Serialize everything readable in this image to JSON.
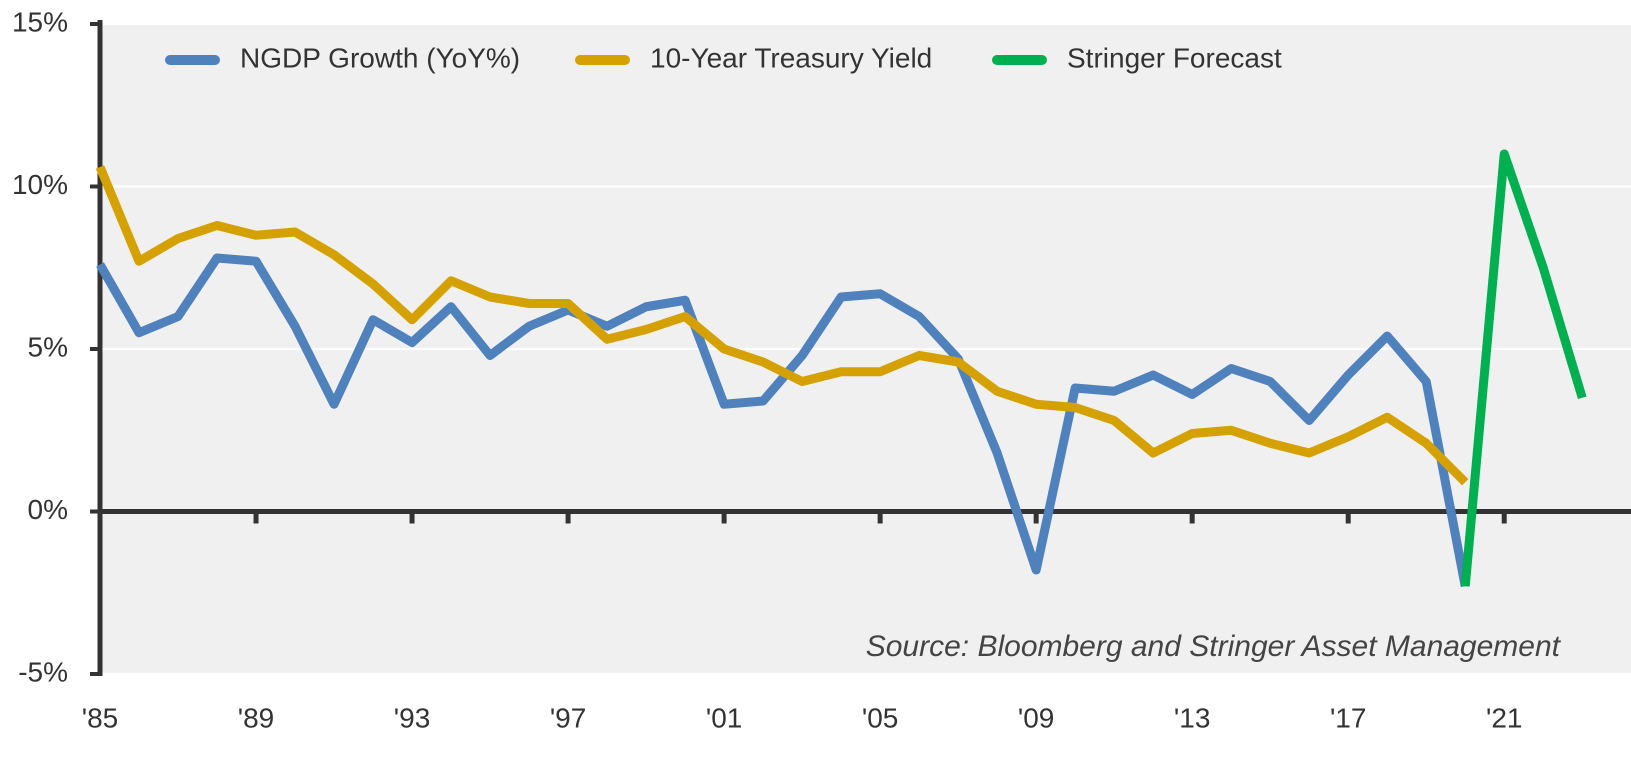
{
  "chart_data": {
    "type": "line",
    "x": [
      1985,
      1986,
      1987,
      1988,
      1989,
      1990,
      1991,
      1992,
      1993,
      1994,
      1995,
      1996,
      1997,
      1998,
      1999,
      2000,
      2001,
      2002,
      2003,
      2004,
      2005,
      2006,
      2007,
      2008,
      2009,
      2010,
      2011,
      2012,
      2013,
      2014,
      2015,
      2016,
      2017,
      2018,
      2019,
      2020,
      2021,
      2022,
      2023
    ],
    "series": [
      {
        "name": "NGDP Growth (YoY%)",
        "color": "#4f81bd",
        "values": [
          7.6,
          5.5,
          6.0,
          7.8,
          7.7,
          5.7,
          3.3,
          5.9,
          5.2,
          6.3,
          4.8,
          5.7,
          6.2,
          5.7,
          6.3,
          6.5,
          3.3,
          3.4,
          4.8,
          6.6,
          6.7,
          6.0,
          4.7,
          1.8,
          -1.8,
          3.8,
          3.7,
          4.2,
          3.6,
          4.4,
          4.0,
          2.8,
          4.2,
          5.4,
          4.0,
          -2.3,
          null,
          null,
          null
        ]
      },
      {
        "name": "10-Year Treasury Yield",
        "color": "#d4a100",
        "values": [
          10.6,
          7.7,
          8.4,
          8.8,
          8.5,
          8.6,
          7.9,
          7.0,
          5.9,
          7.1,
          6.6,
          6.4,
          6.4,
          5.3,
          5.6,
          6.0,
          5.0,
          4.6,
          4.0,
          4.3,
          4.3,
          4.8,
          4.6,
          3.7,
          3.3,
          3.2,
          2.8,
          1.8,
          2.4,
          2.5,
          2.1,
          1.8,
          2.3,
          2.9,
          2.1,
          0.9,
          null,
          null,
          null
        ]
      },
      {
        "name": "Stringer Forecast",
        "color": "#00b050",
        "values": [
          null,
          null,
          null,
          null,
          null,
          null,
          null,
          null,
          null,
          null,
          null,
          null,
          null,
          null,
          null,
          null,
          null,
          null,
          null,
          null,
          null,
          null,
          null,
          null,
          null,
          null,
          null,
          null,
          null,
          null,
          null,
          null,
          null,
          null,
          null,
          -2.3,
          11.0,
          7.5,
          3.5
        ]
      }
    ],
    "xlim": [
      1985,
      2024.25
    ],
    "xticks": [
      {
        "value": 1985,
        "label": "'85"
      },
      {
        "value": 1989,
        "label": "'89"
      },
      {
        "value": 1993,
        "label": "'93"
      },
      {
        "value": 1997,
        "label": "'97"
      },
      {
        "value": 2001,
        "label": "'01"
      },
      {
        "value": 2005,
        "label": "'05"
      },
      {
        "value": 2009,
        "label": "'09"
      },
      {
        "value": 2013,
        "label": "'13"
      },
      {
        "value": 2017,
        "label": "'17"
      },
      {
        "value": 2021,
        "label": "'21"
      }
    ],
    "ylim": [
      -5,
      15
    ],
    "yticks": [
      {
        "value": -5,
        "label": "-5%"
      },
      {
        "value": 0,
        "label": "0%"
      },
      {
        "value": 5,
        "label": "5%"
      },
      {
        "value": 10,
        "label": "10%"
      },
      {
        "value": 15,
        "label": "15%"
      }
    ],
    "grid": true,
    "annotation": "Source: Bloomberg and Stringer Asset Management"
  }
}
